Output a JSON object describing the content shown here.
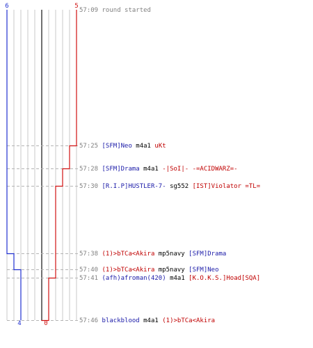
{
  "chart_data": {
    "type": "line",
    "teams": [
      {
        "name": "blue",
        "color": "#1f2fd0",
        "start_count": "6",
        "end_count": "4"
      },
      {
        "name": "red",
        "color": "#d01010",
        "start_count": "5",
        "end_count": "0"
      }
    ],
    "ylim": [
      "57:09",
      "57:46"
    ]
  },
  "log": {
    "start": {
      "time": "57:09",
      "text": "round started"
    },
    "events": [
      {
        "time": "57:25",
        "killer": "[SFM]Neo",
        "weapon": "m4a1",
        "victim": "uKt",
        "killer_team": "blue",
        "victim_team": "red",
        "blue_alive": 6,
        "red_alive": 4
      },
      {
        "time": "57:28",
        "killer": "[SFM]Drama",
        "weapon": "m4a1",
        "victim": "-|SoI|- -=ACIDWARZ=-",
        "killer_team": "blue",
        "victim_team": "red",
        "blue_alive": 6,
        "red_alive": 3
      },
      {
        "time": "57:30",
        "killer": "[R.I.P]HUSTLER-7-",
        "weapon": "sg552",
        "victim": "[IST]Violator  =TL=",
        "killer_team": "blue",
        "victim_team": "red",
        "blue_alive": 6,
        "red_alive": 2
      },
      {
        "time": "57:38",
        "killer": "(1)>bTCa<Akira",
        "weapon": "mp5navy",
        "victim": "[SFM]Drama",
        "killer_team": "red",
        "victim_team": "blue",
        "blue_alive": 5,
        "red_alive": 2
      },
      {
        "time": "57:40",
        "killer": "(1)>bTCa<Akira",
        "weapon": "mp5navy",
        "victim": "[SFM]Neo",
        "killer_team": "red",
        "victim_team": "blue",
        "blue_alive": 4,
        "red_alive": 2
      },
      {
        "time": "57:41",
        "killer": "(afh)afroman(420)",
        "weapon": "m4a1",
        "victim": "[K.O.K.S.]Hoad[SQA]",
        "killer_team": "blue",
        "victim_team": "red",
        "blue_alive": 4,
        "red_alive": 1
      },
      {
        "time": "57:46",
        "killer": "blackblood",
        "weapon": "m4a1",
        "victim": "(1)>bTCa<Akira",
        "killer_team": "blue",
        "victim_team": "red",
        "blue_alive": 4,
        "red_alive": 0
      }
    ]
  }
}
